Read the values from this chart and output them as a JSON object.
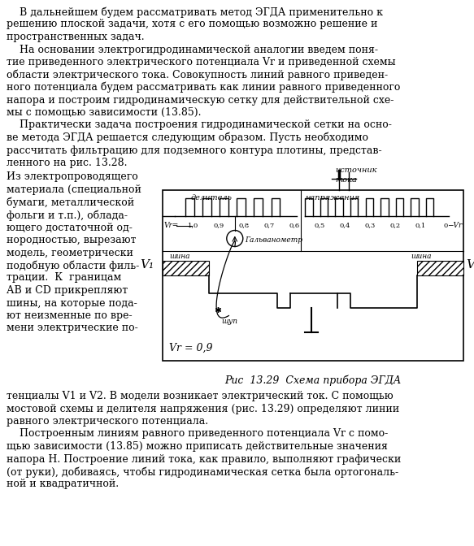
{
  "background_color": "#ffffff",
  "text_color": "#000000",
  "font_size": 9.0,
  "fig_caption": "Рис  13.29  Схема прибора ЭГДА",
  "top_lines": [
    "    В дальнейшем будем рассматривать метод ЭГДА применительно к",
    "решению плоской задачи, хотя с его помощью возможно решение и",
    "пространственных задач.",
    "    На основании электрогидродинамической аналогии введем поня-",
    "тие приведенного электрического потенциала Vr и приведенной схемы",
    "области электрического тока. Совокупность линий равного приведен-",
    "ного потенциала будем рассматривать как линии равного приведенного",
    "напора и построим гидродинамическую сетку для действительной схе-",
    "мы с помощью зависимости (13.85).",
    "    Практически задача построения гидродинамической сетки на осно-",
    "ве метода ЭГДА решается следующим образом. Пусть необходимо",
    "рассчитать фильтрацию для подземного контура плотины, представ-",
    "ленного на рис. 13.28."
  ],
  "left_col_lines": [
    "Из электропроводящего",
    "материала (специальной",
    "бумаги, металлической",
    "фольги и т.п.), облада-",
    "ющего достаточной од-",
    "нородностью, вырезают",
    "модель, геометрически",
    "подобную области филь-",
    "трации.  К  границам",
    "АВ и CD прикрепляют",
    "шины, на которые пода-",
    "ют неизменные по вре-",
    "мени электрические по-"
  ],
  "bottom_lines": [
    "тенциалы V1 и V2. В модели возникает электрический ток. С помощью",
    "мостовой схемы и делителя напряжения (рис. 13.29) определяют линии",
    "равного электрического потенциала.",
    "    Построенным линиям равного приведенного потенциала Vr с помо-",
    "щью зависимости (13.85) можно приписать действительные значения",
    "напора Н. Построение линий тока, как правило, выполняют графически",
    "(от руки), добиваясь, чтобы гидродинамическая сетка была ортогональ-",
    "ной и квадратичной."
  ]
}
